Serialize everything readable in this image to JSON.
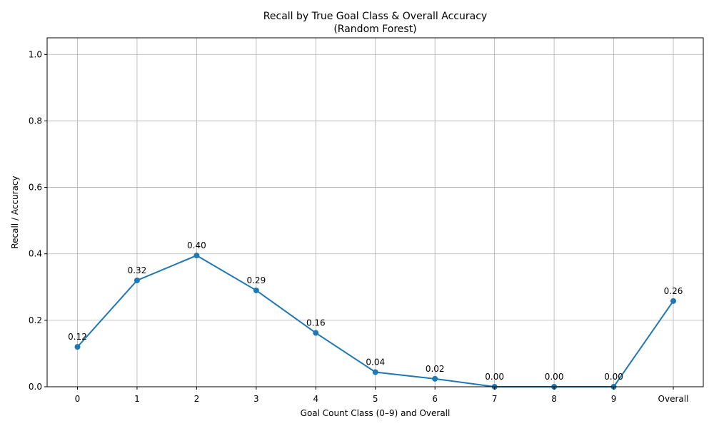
{
  "chart_data": {
    "type": "line",
    "title_line1": "Recall by True Goal Class & Overall Accuracy",
    "title_line2": "(Random Forest)",
    "xlabel": "Goal Count Class (0–9) and Overall",
    "ylabel": "Recall / Accuracy",
    "categories": [
      "0",
      "1",
      "2",
      "3",
      "4",
      "5",
      "6",
      "7",
      "8",
      "9",
      "Overall"
    ],
    "series": [
      {
        "values": [
          0.12,
          0.32,
          0.395,
          0.29,
          0.162,
          0.044,
          0.024,
          0.0,
          0.0,
          0.0,
          0.258
        ],
        "labels": [
          "0.12",
          "0.32",
          "0.40",
          "0.29",
          "0.16",
          "0.04",
          "0.02",
          "0.00",
          "0.00",
          "0.00",
          "0.26"
        ],
        "color": "#1f77b4"
      }
    ],
    "ylim": [
      0,
      1.05
    ],
    "yticks": [
      0.0,
      0.2,
      0.4,
      0.6,
      0.8,
      1.0
    ],
    "ytick_labels": [
      "0.0",
      "0.2",
      "0.4",
      "0.6",
      "0.8",
      "1.0"
    ],
    "grid": true,
    "marker": "circle"
  }
}
